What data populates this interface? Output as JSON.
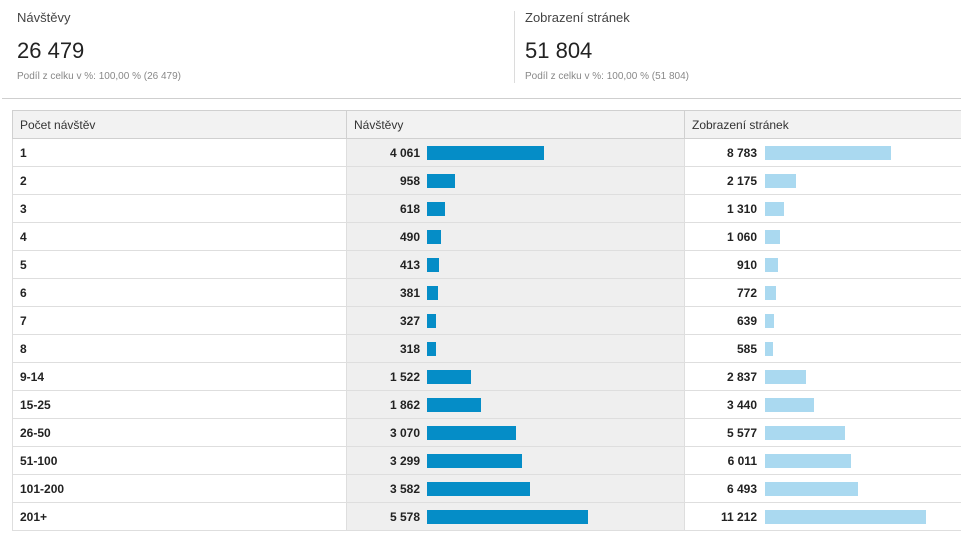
{
  "summary": {
    "visits": {
      "title": "Návštěvy",
      "value": "26 479",
      "share": "Podíl z celku v %: 100,00 % (26 479)"
    },
    "pageviews": {
      "title": "Zobrazení stránek",
      "value": "51 804",
      "share": "Podíl z celku v %: 100,00 % (51 804)"
    }
  },
  "colors": {
    "visits_bar": "#058dc7",
    "pageviews_bar": "#aad9f0"
  },
  "table": {
    "headers": [
      "Počet návštěv",
      "Návštěvy",
      "Zobrazení stránek"
    ],
    "rows": [
      {
        "label": "1",
        "visits": "4 061",
        "pageviews": "8 783"
      },
      {
        "label": "2",
        "visits": "958",
        "pageviews": "2 175"
      },
      {
        "label": "3",
        "visits": "618",
        "pageviews": "1 310"
      },
      {
        "label": "4",
        "visits": "490",
        "pageviews": "1 060"
      },
      {
        "label": "5",
        "visits": "413",
        "pageviews": "910"
      },
      {
        "label": "6",
        "visits": "381",
        "pageviews": "772"
      },
      {
        "label": "7",
        "visits": "327",
        "pageviews": "639"
      },
      {
        "label": "8",
        "visits": "318",
        "pageviews": "585"
      },
      {
        "label": "9-14",
        "visits": "1 522",
        "pageviews": "2 837"
      },
      {
        "label": "15-25",
        "visits": "1 862",
        "pageviews": "3 440"
      },
      {
        "label": "26-50",
        "visits": "3 070",
        "pageviews": "5 577"
      },
      {
        "label": "51-100",
        "visits": "3 299",
        "pageviews": "6 011"
      },
      {
        "label": "101-200",
        "visits": "3 582",
        "pageviews": "6 493"
      },
      {
        "label": "201+",
        "visits": "5 578",
        "pageviews": "11 212"
      }
    ]
  }
}
